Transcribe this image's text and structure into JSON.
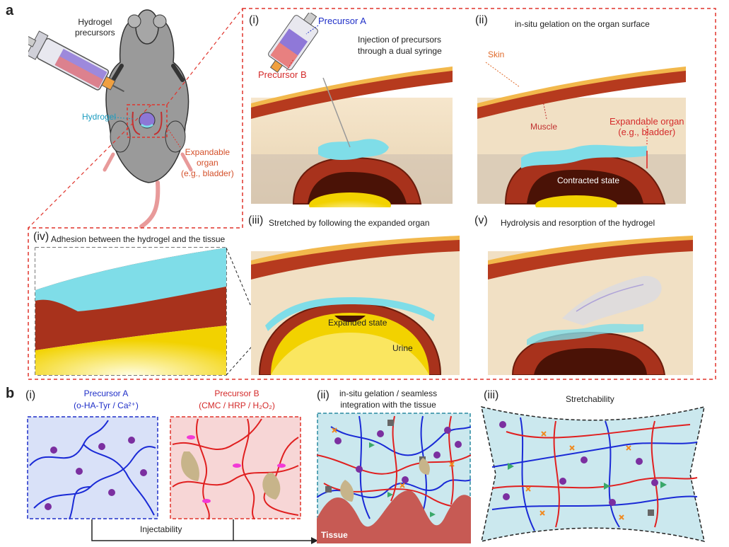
{
  "panel_a": {
    "letter": "a",
    "mouse": {
      "hydrogel_precursors": [
        "Hydrogel",
        "precursors"
      ],
      "hydrogel": "Hydrogel",
      "expandable_organ": [
        "Expandable",
        "organ",
        "(e.g., bladder)"
      ]
    },
    "step_i": {
      "roman": "(i)",
      "precursor_a": "Precursor A",
      "precursor_b": "Precursor B",
      "caption": [
        "Injection of precursors",
        "through a dual syringe"
      ]
    },
    "step_ii": {
      "roman": "(ii)",
      "caption": "in-situ gelation on the organ surface",
      "skin": "Skin",
      "muscle": "Muscle",
      "organ": [
        "Expandable organ",
        "(e.g., bladder)"
      ],
      "state": "Contracted state"
    },
    "step_iii": {
      "roman": "(iii)",
      "caption": "Stretched by following the expanded organ",
      "state": "Expanded state",
      "urine": "Urine"
    },
    "step_iv": {
      "roman": "(iv)",
      "caption": "Adhesion between the hydrogel and the tissue"
    },
    "step_v": {
      "roman": "(v)",
      "caption": "Hydrolysis and resorption of the hydrogel"
    }
  },
  "panel_b": {
    "letter": "b",
    "step_i": {
      "roman": "(i)",
      "precursor_a_title": "Precursor A",
      "precursor_a_sub": "(o-HA-Tyr / Ca²⁺)",
      "precursor_b_title": "Precursor B",
      "precursor_b_sub": "(CMC / HRP / H₂O₂)",
      "arrow_label": "Injectability"
    },
    "step_ii": {
      "roman": "(ii)",
      "caption": [
        "in-situ gelation / seamless",
        "integration with the tissue"
      ],
      "tissue": "Tissue"
    },
    "step_iii": {
      "roman": "(iii)",
      "caption": "Stretchability"
    }
  },
  "colors": {
    "red_dash": "#e0342c",
    "blue_text": "#1f2fc8",
    "red_text": "#d42a2a",
    "orange_label": "#e06a2a",
    "hydrogel_cyan": "#7fdde8",
    "muscle_red": "#a8321c",
    "organ_dark": "#5a1608",
    "tissue_red": "#c75a54",
    "chain_blue": "#1a2ad6",
    "chain_red": "#e02020",
    "dot_purple": "#7b2fa0",
    "panel_blue_bg": "#d9e1f8",
    "panel_pink_bg": "#f7d6d6",
    "panel_cyan_bg": "#cbe8ee"
  }
}
